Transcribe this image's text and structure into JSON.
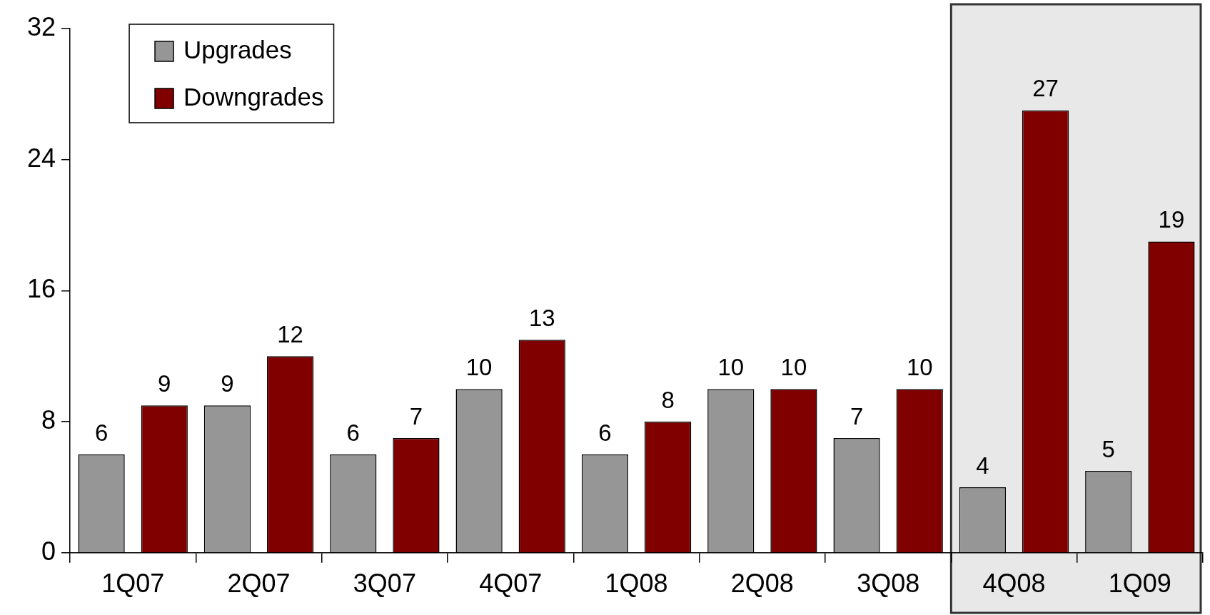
{
  "chart_data": {
    "type": "bar",
    "categories": [
      "1Q07",
      "2Q07",
      "3Q07",
      "4Q07",
      "1Q08",
      "2Q08",
      "3Q08",
      "4Q08",
      "1Q09"
    ],
    "series": [
      {
        "name": "Upgrades",
        "color": "#969696",
        "values": [
          6,
          9,
          6,
          10,
          6,
          10,
          7,
          4,
          5
        ]
      },
      {
        "name": "Downgrades",
        "color": "#800000",
        "values": [
          9,
          12,
          7,
          13,
          8,
          10,
          10,
          27,
          19
        ]
      }
    ],
    "ylim": [
      0,
      32
    ],
    "yticks": [
      0,
      8,
      16,
      24,
      32
    ],
    "data_labels": true,
    "legend": "top left",
    "bands": [
      {
        "axis": "x",
        "from": "4Q08",
        "to": "1Q09",
        "color": "#e8e8e8"
      }
    ]
  }
}
